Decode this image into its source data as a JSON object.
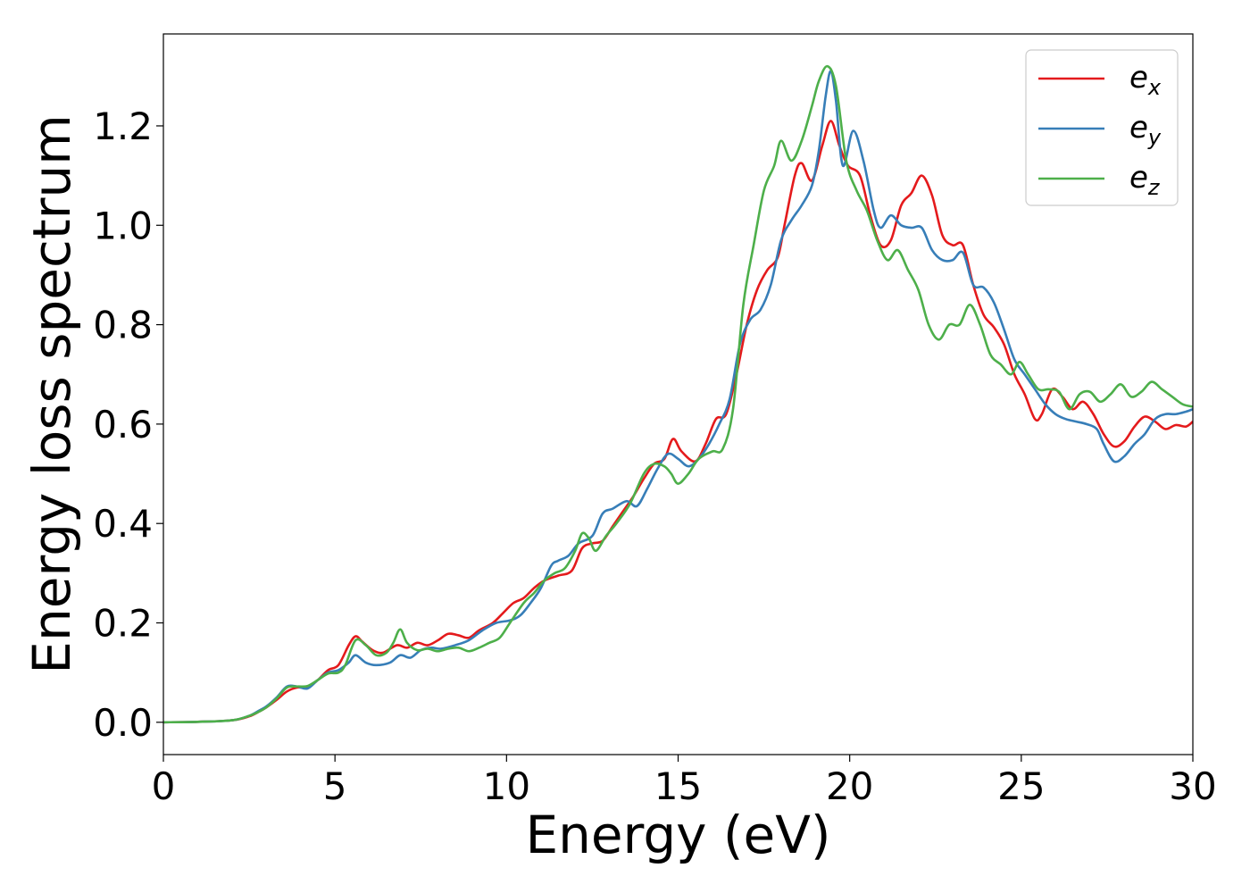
{
  "chart_data": {
    "type": "line",
    "title": "",
    "xlabel": "Energy (eV)",
    "ylabel": "Energy loss spectrum",
    "xlim": [
      0,
      30
    ],
    "ylim": [
      -0.065,
      1.385
    ],
    "xticks": [
      0,
      5,
      10,
      15,
      20,
      25,
      30
    ],
    "xtick_labels": [
      "0",
      "5",
      "10",
      "15",
      "20",
      "25",
      "30"
    ],
    "yticks": [
      0.0,
      0.2,
      0.4,
      0.6,
      0.8,
      1.0,
      1.2
    ],
    "ytick_labels": [
      "0.0",
      "0.2",
      "0.4",
      "0.6",
      "0.8",
      "1.0",
      "1.2"
    ],
    "grid": false,
    "legend": "top-right",
    "series": [
      {
        "name": "e_x",
        "legend_base": "e",
        "legend_sub": "x",
        "color": "#e41a1c",
        "points": [
          [
            0,
            0
          ],
          [
            1,
            0.001
          ],
          [
            2,
            0.004
          ],
          [
            2.5,
            0.012
          ],
          [
            2.8,
            0.022
          ],
          [
            3.0,
            0.03
          ],
          [
            3.3,
            0.045
          ],
          [
            3.6,
            0.062
          ],
          [
            3.9,
            0.07
          ],
          [
            4.2,
            0.07
          ],
          [
            4.5,
            0.085
          ],
          [
            4.8,
            0.105
          ],
          [
            5.1,
            0.115
          ],
          [
            5.4,
            0.155
          ],
          [
            5.6,
            0.173
          ],
          [
            5.8,
            0.162
          ],
          [
            6.1,
            0.145
          ],
          [
            6.4,
            0.14
          ],
          [
            6.8,
            0.155
          ],
          [
            7.1,
            0.15
          ],
          [
            7.4,
            0.16
          ],
          [
            7.7,
            0.155
          ],
          [
            8.0,
            0.165
          ],
          [
            8.3,
            0.178
          ],
          [
            8.6,
            0.175
          ],
          [
            8.9,
            0.17
          ],
          [
            9.2,
            0.185
          ],
          [
            9.6,
            0.2
          ],
          [
            9.9,
            0.22
          ],
          [
            10.2,
            0.24
          ],
          [
            10.5,
            0.25
          ],
          [
            10.8,
            0.27
          ],
          [
            11.1,
            0.285
          ],
          [
            11.5,
            0.295
          ],
          [
            11.9,
            0.305
          ],
          [
            12.2,
            0.35
          ],
          [
            12.5,
            0.36
          ],
          [
            12.8,
            0.365
          ],
          [
            13.1,
            0.395
          ],
          [
            13.4,
            0.425
          ],
          [
            13.7,
            0.455
          ],
          [
            14.0,
            0.49
          ],
          [
            14.3,
            0.52
          ],
          [
            14.6,
            0.53
          ],
          [
            14.85,
            0.57
          ],
          [
            15.1,
            0.545
          ],
          [
            15.5,
            0.525
          ],
          [
            15.8,
            0.56
          ],
          [
            16.1,
            0.61
          ],
          [
            16.4,
            0.62
          ],
          [
            16.7,
            0.7
          ],
          [
            17.0,
            0.8
          ],
          [
            17.3,
            0.87
          ],
          [
            17.6,
            0.91
          ],
          [
            17.9,
            0.935
          ],
          [
            18.1,
            1.0
          ],
          [
            18.4,
            1.1
          ],
          [
            18.6,
            1.125
          ],
          [
            18.9,
            1.09
          ],
          [
            19.2,
            1.16
          ],
          [
            19.45,
            1.21
          ],
          [
            19.7,
            1.16
          ],
          [
            19.95,
            1.12
          ],
          [
            20.3,
            1.1
          ],
          [
            20.6,
            1.02
          ],
          [
            20.9,
            0.96
          ],
          [
            21.2,
            0.97
          ],
          [
            21.5,
            1.04
          ],
          [
            21.8,
            1.065
          ],
          [
            22.1,
            1.1
          ],
          [
            22.4,
            1.06
          ],
          [
            22.7,
            0.98
          ],
          [
            23.0,
            0.96
          ],
          [
            23.3,
            0.96
          ],
          [
            23.6,
            0.88
          ],
          [
            23.9,
            0.82
          ],
          [
            24.2,
            0.795
          ],
          [
            24.5,
            0.76
          ],
          [
            24.8,
            0.7
          ],
          [
            25.1,
            0.66
          ],
          [
            25.4,
            0.61
          ],
          [
            25.6,
            0.62
          ],
          [
            25.9,
            0.67
          ],
          [
            26.2,
            0.655
          ],
          [
            26.5,
            0.63
          ],
          [
            26.8,
            0.645
          ],
          [
            27.1,
            0.62
          ],
          [
            27.4,
            0.58
          ],
          [
            27.7,
            0.555
          ],
          [
            28.0,
            0.565
          ],
          [
            28.3,
            0.595
          ],
          [
            28.6,
            0.615
          ],
          [
            28.9,
            0.605
          ],
          [
            29.2,
            0.59
          ],
          [
            29.5,
            0.598
          ],
          [
            29.8,
            0.595
          ],
          [
            30,
            0.605
          ]
        ]
      },
      {
        "name": "e_y",
        "legend_base": "e",
        "legend_sub": "y",
        "color": "#377eb8",
        "points": [
          [
            0,
            0
          ],
          [
            1,
            0.001
          ],
          [
            2,
            0.004
          ],
          [
            2.5,
            0.013
          ],
          [
            2.8,
            0.024
          ],
          [
            3.0,
            0.032
          ],
          [
            3.3,
            0.05
          ],
          [
            3.6,
            0.072
          ],
          [
            3.9,
            0.072
          ],
          [
            4.2,
            0.068
          ],
          [
            4.5,
            0.085
          ],
          [
            4.8,
            0.1
          ],
          [
            5.1,
            0.105
          ],
          [
            5.4,
            0.12
          ],
          [
            5.6,
            0.135
          ],
          [
            5.9,
            0.12
          ],
          [
            6.2,
            0.115
          ],
          [
            6.6,
            0.12
          ],
          [
            6.9,
            0.135
          ],
          [
            7.2,
            0.13
          ],
          [
            7.5,
            0.145
          ],
          [
            7.8,
            0.15
          ],
          [
            8.1,
            0.148
          ],
          [
            8.5,
            0.155
          ],
          [
            8.9,
            0.165
          ],
          [
            9.3,
            0.185
          ],
          [
            9.7,
            0.2
          ],
          [
            10.1,
            0.205
          ],
          [
            10.4,
            0.215
          ],
          [
            10.7,
            0.24
          ],
          [
            11.0,
            0.27
          ],
          [
            11.3,
            0.315
          ],
          [
            11.5,
            0.325
          ],
          [
            11.8,
            0.335
          ],
          [
            12.1,
            0.36
          ],
          [
            12.5,
            0.375
          ],
          [
            12.8,
            0.42
          ],
          [
            13.1,
            0.43
          ],
          [
            13.5,
            0.445
          ],
          [
            13.8,
            0.435
          ],
          [
            14.1,
            0.47
          ],
          [
            14.4,
            0.51
          ],
          [
            14.7,
            0.54
          ],
          [
            15.0,
            0.53
          ],
          [
            15.3,
            0.515
          ],
          [
            15.6,
            0.53
          ],
          [
            15.9,
            0.56
          ],
          [
            16.2,
            0.6
          ],
          [
            16.5,
            0.65
          ],
          [
            16.8,
            0.76
          ],
          [
            17.1,
            0.81
          ],
          [
            17.4,
            0.83
          ],
          [
            17.7,
            0.88
          ],
          [
            18.0,
            0.97
          ],
          [
            18.3,
            1.01
          ],
          [
            18.6,
            1.04
          ],
          [
            18.9,
            1.08
          ],
          [
            19.1,
            1.15
          ],
          [
            19.3,
            1.26
          ],
          [
            19.45,
            1.31
          ],
          [
            19.6,
            1.25
          ],
          [
            19.8,
            1.12
          ],
          [
            20.1,
            1.19
          ],
          [
            20.4,
            1.13
          ],
          [
            20.7,
            1.03
          ],
          [
            20.9,
            0.995
          ],
          [
            21.2,
            1.02
          ],
          [
            21.5,
            1.0
          ],
          [
            21.8,
            0.995
          ],
          [
            22.1,
            0.995
          ],
          [
            22.4,
            0.95
          ],
          [
            22.7,
            0.93
          ],
          [
            23.0,
            0.93
          ],
          [
            23.3,
            0.945
          ],
          [
            23.6,
            0.88
          ],
          [
            23.9,
            0.875
          ],
          [
            24.2,
            0.845
          ],
          [
            24.5,
            0.79
          ],
          [
            24.8,
            0.73
          ],
          [
            25.1,
            0.7
          ],
          [
            25.4,
            0.67
          ],
          [
            25.7,
            0.64
          ],
          [
            26.0,
            0.62
          ],
          [
            26.3,
            0.61
          ],
          [
            26.6,
            0.605
          ],
          [
            26.9,
            0.6
          ],
          [
            27.2,
            0.59
          ],
          [
            27.4,
            0.56
          ],
          [
            27.7,
            0.525
          ],
          [
            28.0,
            0.535
          ],
          [
            28.3,
            0.56
          ],
          [
            28.6,
            0.58
          ],
          [
            28.9,
            0.61
          ],
          [
            29.2,
            0.62
          ],
          [
            29.5,
            0.62
          ],
          [
            29.8,
            0.625
          ],
          [
            30,
            0.63
          ]
        ]
      },
      {
        "name": "e_z",
        "legend_base": "e",
        "legend_sub": "z",
        "color": "#4daf4a",
        "points": [
          [
            0,
            0
          ],
          [
            1,
            0.001
          ],
          [
            2,
            0.004
          ],
          [
            2.5,
            0.013
          ],
          [
            2.8,
            0.022
          ],
          [
            3.0,
            0.03
          ],
          [
            3.3,
            0.048
          ],
          [
            3.6,
            0.07
          ],
          [
            3.9,
            0.072
          ],
          [
            4.2,
            0.073
          ],
          [
            4.5,
            0.085
          ],
          [
            4.8,
            0.098
          ],
          [
            5.1,
            0.1
          ],
          [
            5.3,
            0.115
          ],
          [
            5.6,
            0.165
          ],
          [
            5.9,
            0.155
          ],
          [
            6.2,
            0.135
          ],
          [
            6.5,
            0.14
          ],
          [
            6.7,
            0.16
          ],
          [
            6.9,
            0.187
          ],
          [
            7.1,
            0.16
          ],
          [
            7.4,
            0.145
          ],
          [
            7.7,
            0.148
          ],
          [
            8.0,
            0.143
          ],
          [
            8.3,
            0.148
          ],
          [
            8.6,
            0.15
          ],
          [
            8.9,
            0.143
          ],
          [
            9.2,
            0.15
          ],
          [
            9.5,
            0.16
          ],
          [
            9.8,
            0.17
          ],
          [
            10.1,
            0.2
          ],
          [
            10.5,
            0.24
          ],
          [
            10.8,
            0.26
          ],
          [
            11.1,
            0.285
          ],
          [
            11.4,
            0.3
          ],
          [
            11.7,
            0.31
          ],
          [
            12.0,
            0.345
          ],
          [
            12.2,
            0.38
          ],
          [
            12.4,
            0.37
          ],
          [
            12.6,
            0.345
          ],
          [
            12.9,
            0.375
          ],
          [
            13.2,
            0.4
          ],
          [
            13.6,
            0.44
          ],
          [
            14.0,
            0.5
          ],
          [
            14.3,
            0.52
          ],
          [
            14.6,
            0.515
          ],
          [
            14.8,
            0.5
          ],
          [
            15.0,
            0.48
          ],
          [
            15.3,
            0.5
          ],
          [
            15.6,
            0.53
          ],
          [
            16.0,
            0.545
          ],
          [
            16.3,
            0.55
          ],
          [
            16.6,
            0.63
          ],
          [
            16.9,
            0.84
          ],
          [
            17.2,
            0.96
          ],
          [
            17.5,
            1.07
          ],
          [
            17.8,
            1.12
          ],
          [
            18.0,
            1.17
          ],
          [
            18.3,
            1.13
          ],
          [
            18.6,
            1.17
          ],
          [
            18.9,
            1.24
          ],
          [
            19.1,
            1.29
          ],
          [
            19.35,
            1.32
          ],
          [
            19.6,
            1.28
          ],
          [
            19.9,
            1.13
          ],
          [
            20.2,
            1.07
          ],
          [
            20.5,
            1.03
          ],
          [
            20.8,
            0.97
          ],
          [
            21.1,
            0.93
          ],
          [
            21.4,
            0.95
          ],
          [
            21.7,
            0.91
          ],
          [
            22.0,
            0.87
          ],
          [
            22.3,
            0.8
          ],
          [
            22.6,
            0.77
          ],
          [
            22.9,
            0.8
          ],
          [
            23.2,
            0.8
          ],
          [
            23.5,
            0.84
          ],
          [
            23.8,
            0.8
          ],
          [
            24.1,
            0.74
          ],
          [
            24.4,
            0.72
          ],
          [
            24.7,
            0.7
          ],
          [
            24.95,
            0.725
          ],
          [
            25.2,
            0.7
          ],
          [
            25.5,
            0.67
          ],
          [
            25.8,
            0.67
          ],
          [
            26.1,
            0.665
          ],
          [
            26.4,
            0.63
          ],
          [
            26.7,
            0.66
          ],
          [
            27.0,
            0.665
          ],
          [
            27.3,
            0.645
          ],
          [
            27.6,
            0.66
          ],
          [
            27.9,
            0.68
          ],
          [
            28.2,
            0.655
          ],
          [
            28.5,
            0.665
          ],
          [
            28.8,
            0.685
          ],
          [
            29.1,
            0.67
          ],
          [
            29.4,
            0.655
          ],
          [
            29.7,
            0.64
          ],
          [
            30,
            0.635
          ]
        ]
      }
    ]
  }
}
